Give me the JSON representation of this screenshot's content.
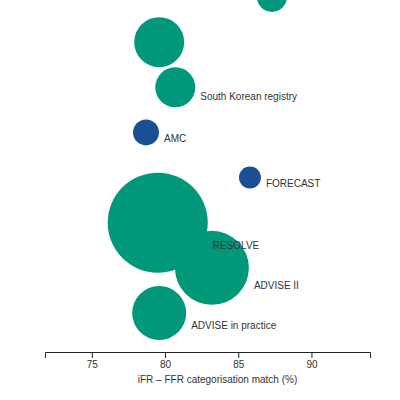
{
  "chart_data": {
    "type": "bubble",
    "x_label": "iFR – FFR categorisation match (%)",
    "categories": [
      null,
      null,
      "South Korean registry",
      "AMC",
      "FORECAST",
      "RESOLVE",
      "ADVISE II",
      "ADVISE in practice"
    ],
    "x": [
      87.3,
      79.6,
      80.7,
      78.7,
      85.8,
      79.5,
      83.2,
      79.6
    ],
    "sizes": [
      144,
      400,
      256,
      108,
      77,
      1600,
      876,
      467
    ],
    "colors": [
      "#00977b",
      "#00977b",
      "#00977b",
      "#1b4f95",
      "#1b4f95",
      "#00977b",
      "#00977b",
      "#00977b"
    ],
    "xlim": [
      71.8,
      94
    ],
    "xticks": [
      75,
      80,
      85,
      90
    ],
    "tick_labels": "x"
  }
}
